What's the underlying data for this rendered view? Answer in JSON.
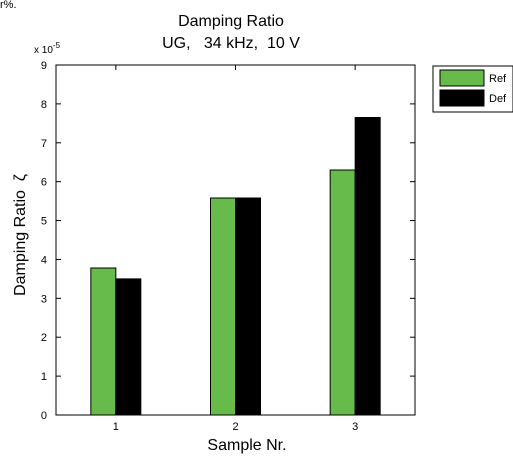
{
  "page": {
    "top_text_fragment": "r%."
  },
  "chart_data": {
    "type": "bar",
    "title": "Damping Ratio",
    "subtitle": "UG,   34 kHz,  10 V",
    "xlabel": "Sample Nr.",
    "ylabel": "Damping Ratio  ζ",
    "y_scale_label": "x 10",
    "y_scale_exponent": "-5",
    "ylim": [
      0,
      9
    ],
    "yticks": [
      "0",
      "1",
      "2",
      "3",
      "4",
      "5",
      "6",
      "7",
      "8",
      "9"
    ],
    "categories": [
      "1",
      "2",
      "3"
    ],
    "series": [
      {
        "name": "Ref",
        "color": "#66bb4a",
        "values": [
          3.78,
          5.58,
          6.3
        ]
      },
      {
        "name": "Def",
        "color": "#000000",
        "values": [
          3.5,
          5.58,
          7.65
        ]
      }
    ],
    "legend_position": "outside-top-right",
    "grid": false
  }
}
